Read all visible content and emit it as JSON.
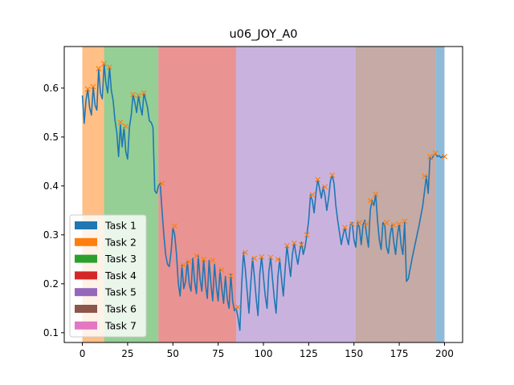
{
  "chart_data": {
    "type": "line",
    "title": "u06_JOY_A0",
    "xlim": [
      -10,
      210
    ],
    "ylim": [
      0.08,
      0.685
    ],
    "xticks": [
      0,
      25,
      50,
      75,
      100,
      125,
      150,
      175,
      200
    ],
    "yticks": [
      0.1,
      0.2,
      0.3,
      0.4,
      0.5,
      0.6
    ],
    "ytick_labels": [
      "0.1",
      "0.2",
      "0.3",
      "0.4",
      "0.5",
      "0.6"
    ],
    "grid": false,
    "legend_position": "lower-left",
    "legend": [
      {
        "label": "Task 1",
        "color": "#1f77b4"
      },
      {
        "label": "Task 2",
        "color": "#ff7f0e"
      },
      {
        "label": "Task 3",
        "color": "#2ca02c"
      },
      {
        "label": "Task 4",
        "color": "#d62728"
      },
      {
        "label": "Task 5",
        "color": "#9467bd"
      },
      {
        "label": "Task 6",
        "color": "#8c564b"
      },
      {
        "label": "Task 7",
        "color": "#e377c2"
      }
    ],
    "spans": [
      {
        "task": "Task 2",
        "x_start": 0,
        "x_end": 12,
        "color": "#ff7f0e"
      },
      {
        "task": "Task 3",
        "x_start": 12,
        "x_end": 42,
        "color": "#2ca02c"
      },
      {
        "task": "Task 4",
        "x_start": 42,
        "x_end": 85,
        "color": "#d62728"
      },
      {
        "task": "Task 5",
        "x_start": 85,
        "x_end": 151,
        "color": "#9467bd"
      },
      {
        "task": "Task 6",
        "x_start": 151,
        "x_end": 195,
        "color": "#8c564b"
      },
      {
        "task": "Task 1",
        "x_start": 195,
        "x_end": 200,
        "color": "#1f77b4"
      }
    ],
    "series": [
      {
        "color": "#1f77b4",
        "points": [
          [
            0,
            0.585
          ],
          [
            1,
            0.528
          ],
          [
            2,
            0.575
          ],
          [
            3,
            0.598
          ],
          [
            4,
            0.56
          ],
          [
            5,
            0.545
          ],
          [
            6,
            0.603
          ],
          [
            7,
            0.565
          ],
          [
            8,
            0.555
          ],
          [
            9,
            0.64
          ],
          [
            10,
            0.59
          ],
          [
            11,
            0.578
          ],
          [
            12,
            0.65
          ],
          [
            13,
            0.61
          ],
          [
            14,
            0.59
          ],
          [
            15,
            0.643
          ],
          [
            16,
            0.595
          ],
          [
            17,
            0.575
          ],
          [
            18,
            0.535
          ],
          [
            19,
            0.51
          ],
          [
            20,
            0.46
          ],
          [
            21,
            0.525
          ],
          [
            22,
            0.48
          ],
          [
            23,
            0.52
          ],
          [
            24,
            0.47
          ],
          [
            25,
            0.455
          ],
          [
            26,
            0.52
          ],
          [
            27,
            0.545
          ],
          [
            28,
            0.587
          ],
          [
            29,
            0.57
          ],
          [
            30,
            0.55
          ],
          [
            31,
            0.585
          ],
          [
            32,
            0.562
          ],
          [
            33,
            0.545
          ],
          [
            34,
            0.59
          ],
          [
            35,
            0.575
          ],
          [
            36,
            0.56
          ],
          [
            37,
            0.533
          ],
          [
            38,
            0.53
          ],
          [
            39,
            0.52
          ],
          [
            40,
            0.39
          ],
          [
            41,
            0.385
          ],
          [
            42,
            0.4
          ],
          [
            43,
            0.405
          ],
          [
            44,
            0.35
          ],
          [
            45,
            0.3
          ],
          [
            46,
            0.26
          ],
          [
            47,
            0.24
          ],
          [
            48,
            0.235
          ],
          [
            49,
            0.265
          ],
          [
            50,
            0.315
          ],
          [
            51,
            0.3
          ],
          [
            52,
            0.26
          ],
          [
            53,
            0.2
          ],
          [
            54,
            0.175
          ],
          [
            55,
            0.238
          ],
          [
            56,
            0.19
          ],
          [
            57,
            0.205
          ],
          [
            58,
            0.245
          ],
          [
            59,
            0.2
          ],
          [
            60,
            0.185
          ],
          [
            61,
            0.252
          ],
          [
            62,
            0.205
          ],
          [
            63,
            0.18
          ],
          [
            64,
            0.257
          ],
          [
            65,
            0.21
          ],
          [
            66,
            0.185
          ],
          [
            67,
            0.25
          ],
          [
            68,
            0.2
          ],
          [
            69,
            0.17
          ],
          [
            70,
            0.248
          ],
          [
            71,
            0.2
          ],
          [
            72,
            0.165
          ],
          [
            73,
            0.24
          ],
          [
            74,
            0.195
          ],
          [
            75,
            0.165
          ],
          [
            76,
            0.228
          ],
          [
            77,
            0.19
          ],
          [
            78,
            0.16
          ],
          [
            79,
            0.215
          ],
          [
            80,
            0.17
          ],
          [
            81,
            0.15
          ],
          [
            82,
            0.22
          ],
          [
            83,
            0.165
          ],
          [
            84,
            0.145
          ],
          [
            85,
            0.15
          ],
          [
            86,
            0.13
          ],
          [
            87,
            0.105
          ],
          [
            88,
            0.2
          ],
          [
            89,
            0.264
          ],
          [
            90,
            0.23
          ],
          [
            91,
            0.185
          ],
          [
            92,
            0.14
          ],
          [
            93,
            0.2
          ],
          [
            94,
            0.252
          ],
          [
            95,
            0.215
          ],
          [
            96,
            0.17
          ],
          [
            97,
            0.135
          ],
          [
            98,
            0.22
          ],
          [
            99,
            0.255
          ],
          [
            100,
            0.215
          ],
          [
            101,
            0.175
          ],
          [
            102,
            0.15
          ],
          [
            103,
            0.225
          ],
          [
            104,
            0.254
          ],
          [
            105,
            0.21
          ],
          [
            106,
            0.17
          ],
          [
            107,
            0.14
          ],
          [
            108,
            0.215
          ],
          [
            109,
            0.25
          ],
          [
            110,
            0.21
          ],
          [
            111,
            0.175
          ],
          [
            112,
            0.23
          ],
          [
            113,
            0.278
          ],
          [
            114,
            0.245
          ],
          [
            115,
            0.215
          ],
          [
            116,
            0.26
          ],
          [
            117,
            0.283
          ],
          [
            118,
            0.26
          ],
          [
            119,
            0.24
          ],
          [
            120,
            0.265
          ],
          [
            121,
            0.285
          ],
          [
            122,
            0.26
          ],
          [
            123,
            0.275
          ],
          [
            124,
            0.3
          ],
          [
            125,
            0.33
          ],
          [
            126,
            0.382
          ],
          [
            127,
            0.37
          ],
          [
            128,
            0.345
          ],
          [
            129,
            0.385
          ],
          [
            130,
            0.413
          ],
          [
            131,
            0.395
          ],
          [
            132,
            0.375
          ],
          [
            133,
            0.398
          ],
          [
            134,
            0.38
          ],
          [
            135,
            0.35
          ],
          [
            136,
            0.375
          ],
          [
            137,
            0.41
          ],
          [
            138,
            0.422
          ],
          [
            139,
            0.405
          ],
          [
            140,
            0.36
          ],
          [
            141,
            0.33
          ],
          [
            142,
            0.305
          ],
          [
            143,
            0.28
          ],
          [
            144,
            0.3
          ],
          [
            145,
            0.315
          ],
          [
            146,
            0.295
          ],
          [
            147,
            0.28
          ],
          [
            148,
            0.32
          ],
          [
            149,
            0.325
          ],
          [
            150,
            0.29
          ],
          [
            151,
            0.275
          ],
          [
            152,
            0.325
          ],
          [
            153,
            0.315
          ],
          [
            154,
            0.28
          ],
          [
            155,
            0.32
          ],
          [
            156,
            0.33
          ],
          [
            157,
            0.3
          ],
          [
            158,
            0.275
          ],
          [
            159,
            0.35
          ],
          [
            160,
            0.37
          ],
          [
            161,
            0.36
          ],
          [
            162,
            0.383
          ],
          [
            163,
            0.33
          ],
          [
            164,
            0.29
          ],
          [
            165,
            0.27
          ],
          [
            166,
            0.325
          ],
          [
            167,
            0.32
          ],
          [
            168,
            0.275
          ],
          [
            169,
            0.262
          ],
          [
            170,
            0.3
          ],
          [
            171,
            0.32
          ],
          [
            172,
            0.285
          ],
          [
            173,
            0.26
          ],
          [
            174,
            0.3
          ],
          [
            175,
            0.322
          ],
          [
            176,
            0.28
          ],
          [
            177,
            0.26
          ],
          [
            178,
            0.325
          ],
          [
            179,
            0.205
          ],
          [
            180,
            0.21
          ],
          [
            182,
            0.25
          ],
          [
            184,
            0.285
          ],
          [
            186,
            0.32
          ],
          [
            188,
            0.36
          ],
          [
            189,
            0.39
          ],
          [
            190,
            0.42
          ],
          [
            191,
            0.385
          ],
          [
            192,
            0.46
          ],
          [
            193,
            0.455
          ],
          [
            194,
            0.463
          ],
          [
            195,
            0.467
          ],
          [
            196,
            0.46
          ],
          [
            197,
            0.462
          ],
          [
            198,
            0.458
          ],
          [
            199,
            0.46
          ],
          [
            200,
            0.46
          ]
        ]
      }
    ],
    "peak_markers": {
      "color": "#ff7f0e",
      "marker": "x",
      "points": [
        [
          3,
          0.598
        ],
        [
          6,
          0.603
        ],
        [
          9,
          0.64
        ],
        [
          12,
          0.65
        ],
        [
          15,
          0.643
        ],
        [
          21,
          0.53
        ],
        [
          24,
          0.522
        ],
        [
          28,
          0.587
        ],
        [
          31,
          0.585
        ],
        [
          34,
          0.59
        ],
        [
          44,
          0.405
        ],
        [
          51,
          0.318
        ],
        [
          56,
          0.238
        ],
        [
          59,
          0.245
        ],
        [
          63,
          0.257
        ],
        [
          67,
          0.25
        ],
        [
          72,
          0.248
        ],
        [
          77,
          0.228
        ],
        [
          82,
          0.216
        ],
        [
          86,
          0.152
        ],
        [
          90,
          0.264
        ],
        [
          95,
          0.252
        ],
        [
          99,
          0.255
        ],
        [
          104,
          0.254
        ],
        [
          108,
          0.25
        ],
        [
          113,
          0.278
        ],
        [
          117,
          0.283
        ],
        [
          121,
          0.28
        ],
        [
          124,
          0.3
        ],
        [
          127,
          0.382
        ],
        [
          130,
          0.413
        ],
        [
          134,
          0.398
        ],
        [
          138,
          0.422
        ],
        [
          145,
          0.315
        ],
        [
          149,
          0.322
        ],
        [
          153,
          0.325
        ],
        [
          157,
          0.322
        ],
        [
          159,
          0.37
        ],
        [
          162,
          0.383
        ],
        [
          168,
          0.325
        ],
        [
          172,
          0.32
        ],
        [
          175,
          0.322
        ],
        [
          178,
          0.328
        ],
        [
          189,
          0.42
        ],
        [
          192,
          0.46
        ],
        [
          195,
          0.467
        ],
        [
          200,
          0.46
        ]
      ]
    }
  }
}
